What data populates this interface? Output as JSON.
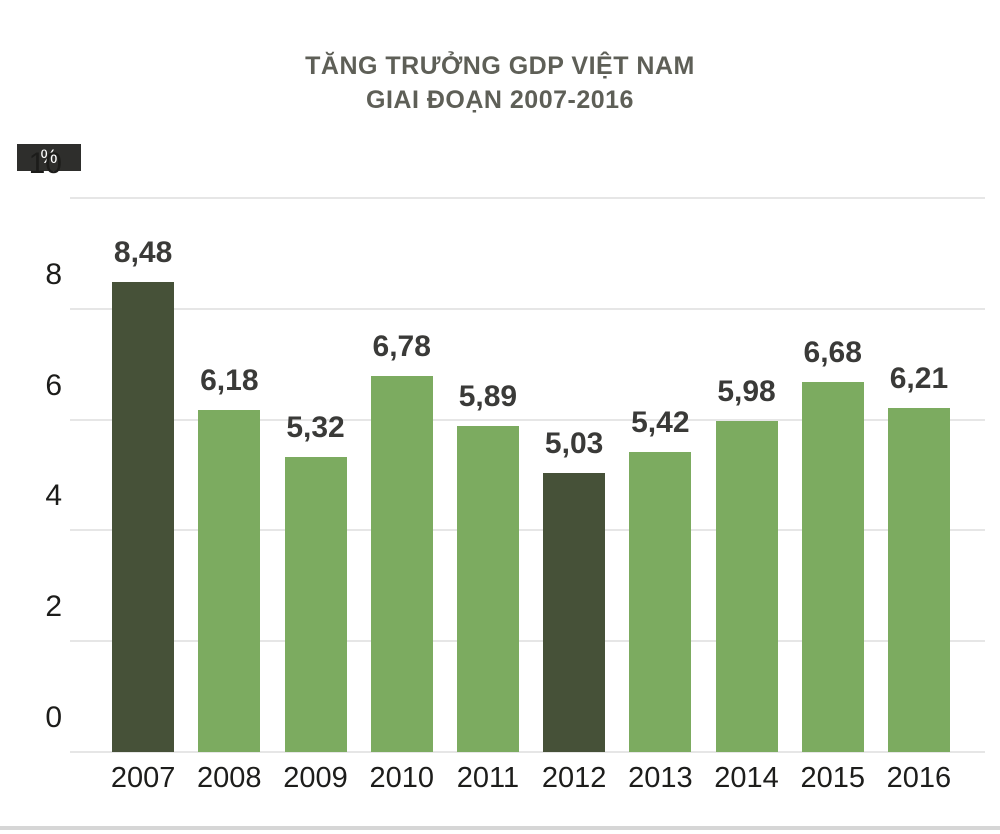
{
  "title": {
    "line1": "TĂNG TRƯỞNG GDP VIỆT NAM",
    "line2": "GIAI ĐOẠN 2007-2016"
  },
  "y_axis": {
    "unit_label": "%"
  },
  "chart_data": {
    "type": "bar",
    "title": "TĂNG TRƯỞNG GDP VIỆT NAM GIAI ĐOẠN 2007-2016",
    "categories": [
      "2007",
      "2008",
      "2009",
      "2010",
      "2011",
      "2012",
      "2013",
      "2014",
      "2015",
      "2016"
    ],
    "values": [
      8.48,
      6.18,
      5.32,
      6.78,
      5.89,
      5.03,
      5.42,
      5.98,
      6.68,
      6.21
    ],
    "value_labels": [
      "8,48",
      "6,18",
      "5,32",
      "6,78",
      "5,89",
      "5,03",
      "5,42",
      "5,98",
      "6,68",
      "6,21"
    ],
    "xlabel": "",
    "ylabel": "%",
    "ylim": [
      0,
      10
    ],
    "yticks": [
      0,
      2,
      4,
      6,
      8,
      10
    ],
    "grid": "horizontal",
    "legend": "none",
    "highlighted_categories": [
      "2007",
      "2012"
    ],
    "colors": {
      "bar": "#7cab60",
      "bar_highlight": "#465138",
      "value_label": "#3a3a38",
      "title": "#5e5f57",
      "gridline": "#e6e6e6",
      "unit_badge_bg": "#2e2e2c",
      "unit_badge_text": "#ffffff"
    }
  }
}
